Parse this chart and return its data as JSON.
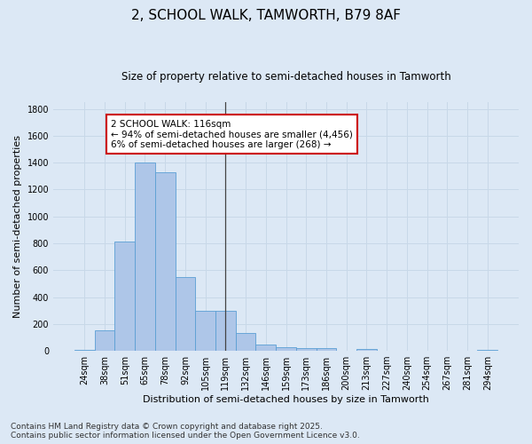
{
  "title": "2, SCHOOL WALK, TAMWORTH, B79 8AF",
  "subtitle": "Size of property relative to semi-detached houses in Tamworth",
  "xlabel": "Distribution of semi-detached houses by size in Tamworth",
  "ylabel": "Number of semi-detached properties",
  "categories": [
    "24sqm",
    "38sqm",
    "51sqm",
    "65sqm",
    "78sqm",
    "92sqm",
    "105sqm",
    "119sqm",
    "132sqm",
    "146sqm",
    "159sqm",
    "173sqm",
    "186sqm",
    "200sqm",
    "213sqm",
    "227sqm",
    "240sqm",
    "254sqm",
    "267sqm",
    "281sqm",
    "294sqm"
  ],
  "values": [
    10,
    150,
    810,
    1400,
    1330,
    550,
    295,
    295,
    130,
    50,
    30,
    20,
    20,
    0,
    15,
    0,
    0,
    0,
    0,
    0,
    10
  ],
  "bar_color": "#aec6e8",
  "bar_edge_color": "#5a9fd4",
  "vline_x_index": 7,
  "vline_color": "#444444",
  "annotation_line1": "2 SCHOOL WALK: 116sqm",
  "annotation_line2": "← 94% of semi-detached houses are smaller (4,456)",
  "annotation_line3": "6% of semi-detached houses are larger (268) →",
  "annotation_box_color": "#ffffff",
  "annotation_box_edge_color": "#cc0000",
  "ylim": [
    0,
    1850
  ],
  "yticks": [
    0,
    200,
    400,
    600,
    800,
    1000,
    1200,
    1400,
    1600,
    1800
  ],
  "grid_color": "#c8d8e8",
  "background_color": "#dce8f5",
  "footer_text": "Contains HM Land Registry data © Crown copyright and database right 2025.\nContains public sector information licensed under the Open Government Licence v3.0.",
  "title_fontsize": 11,
  "subtitle_fontsize": 8.5,
  "xlabel_fontsize": 8,
  "ylabel_fontsize": 8,
  "tick_fontsize": 7,
  "annotation_fontsize": 7.5,
  "footer_fontsize": 6.5
}
